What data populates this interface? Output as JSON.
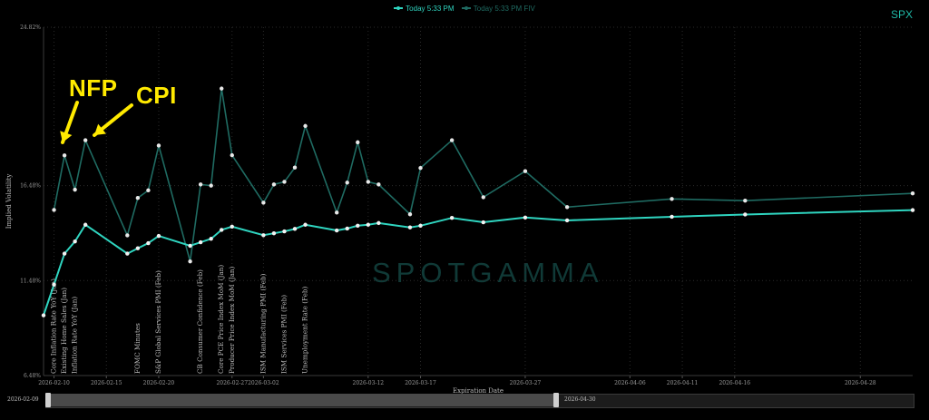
{
  "header": {
    "legend": [
      {
        "label": "Today 5:33 PM",
        "color": "#2fd5c0",
        "faded": false
      },
      {
        "label": "Today 5:33 PM FIV",
        "color": "#1f6b62",
        "faded": true
      }
    ],
    "ticker": "SPX"
  },
  "annotations": {
    "nfp": "NFP",
    "cpi": "CPI"
  },
  "watermark": "SPOTGAMMA",
  "slider": {
    "start_label": "2026-02-09",
    "end_label": "2026-04-30"
  },
  "chart_data": {
    "type": "line",
    "title": "",
    "xlabel": "Expiration Date",
    "ylabel": "Implied Volatility",
    "x_range": [
      "2026-02-09",
      "2026-05-03"
    ],
    "ylim": [
      6.48,
      24.82
    ],
    "y_ticks": [
      "6.48%",
      "11.48%",
      "16.48%",
      "24.82%"
    ],
    "y_tick_values": [
      6.48,
      11.48,
      16.48,
      24.82
    ],
    "x_ticks": [
      "2026-02-10",
      "2026-02-15",
      "2026-02-20",
      "2026-02-27",
      "2026-03-02",
      "2026-03-12",
      "2026-03-17",
      "2026-03-27",
      "2026-04-06",
      "2026-04-11",
      "2026-04-16",
      "2026-04-28"
    ],
    "grid": true,
    "series": [
      {
        "name": "Today 5:33 PM",
        "color": "#2fd5c0",
        "points": [
          [
            "2026-02-09",
            9.65
          ],
          [
            "2026-02-10",
            11.27
          ],
          [
            "2026-02-11",
            12.9
          ],
          [
            "2026-02-12",
            13.54
          ],
          [
            "2026-02-13",
            14.42
          ],
          [
            "2026-02-17",
            12.9
          ],
          [
            "2026-02-18",
            13.18
          ],
          [
            "2026-02-19",
            13.45
          ],
          [
            "2026-02-20",
            13.83
          ],
          [
            "2026-02-23",
            13.31
          ],
          [
            "2026-02-24",
            13.5
          ],
          [
            "2026-02-25",
            13.68
          ],
          [
            "2026-02-26",
            14.15
          ],
          [
            "2026-02-27",
            14.32
          ],
          [
            "2026-03-02",
            13.87
          ],
          [
            "2026-03-03",
            13.97
          ],
          [
            "2026-03-04",
            14.07
          ],
          [
            "2026-03-05",
            14.2
          ],
          [
            "2026-03-06",
            14.42
          ],
          [
            "2026-03-09",
            14.12
          ],
          [
            "2026-03-10",
            14.22
          ],
          [
            "2026-03-11",
            14.37
          ],
          [
            "2026-03-12",
            14.42
          ],
          [
            "2026-03-13",
            14.51
          ],
          [
            "2026-03-16",
            14.28
          ],
          [
            "2026-03-17",
            14.37
          ],
          [
            "2026-03-20",
            14.78
          ],
          [
            "2026-03-23",
            14.55
          ],
          [
            "2026-03-27",
            14.8
          ],
          [
            "2026-03-31",
            14.65
          ],
          [
            "2026-04-10",
            14.84
          ],
          [
            "2026-04-17",
            14.96
          ],
          [
            "2026-05-03",
            15.19
          ]
        ]
      },
      {
        "name": "Today 5:33 PM FIV",
        "color": "#1f6b62",
        "points": [
          [
            "2026-02-10",
            15.2
          ],
          [
            "2026-02-11",
            18.07
          ],
          [
            "2026-02-12",
            16.27
          ],
          [
            "2026-02-13",
            18.87
          ],
          [
            "2026-02-17",
            13.86
          ],
          [
            "2026-02-18",
            15.83
          ],
          [
            "2026-02-19",
            16.23
          ],
          [
            "2026-02-20",
            18.59
          ],
          [
            "2026-02-23",
            12.49
          ],
          [
            "2026-02-24",
            16.54
          ],
          [
            "2026-02-25",
            16.48
          ],
          [
            "2026-02-26",
            21.59
          ],
          [
            "2026-02-27",
            18.08
          ],
          [
            "2026-03-02",
            15.58
          ],
          [
            "2026-03-03",
            16.54
          ],
          [
            "2026-03-04",
            16.68
          ],
          [
            "2026-03-05",
            17.43
          ],
          [
            "2026-03-06",
            19.62
          ],
          [
            "2026-03-09",
            15.06
          ],
          [
            "2026-03-10",
            16.64
          ],
          [
            "2026-03-11",
            18.76
          ],
          [
            "2026-03-12",
            16.68
          ],
          [
            "2026-03-13",
            16.54
          ],
          [
            "2026-03-16",
            14.97
          ],
          [
            "2026-03-17",
            17.41
          ],
          [
            "2026-03-20",
            18.87
          ],
          [
            "2026-03-23",
            15.87
          ],
          [
            "2026-03-27",
            17.24
          ],
          [
            "2026-03-31",
            15.35
          ],
          [
            "2026-04-10",
            15.78
          ],
          [
            "2026-04-17",
            15.69
          ],
          [
            "2026-05-03",
            16.07
          ]
        ]
      }
    ],
    "events": [
      {
        "date": "2026-02-10",
        "label": "Core Inflation Rate YoY (Jan)"
      },
      {
        "date": "2026-02-11",
        "label": "Existing Home Sales (Jan)"
      },
      {
        "date": "2026-02-12",
        "label": "Inflation Rate YoY (Jan)"
      },
      {
        "date": "2026-02-18",
        "label": "FOMC Minutes"
      },
      {
        "date": "2026-02-20",
        "label": "S&P Global Services PMI (Feb)"
      },
      {
        "date": "2026-02-24",
        "label": "CB Consumer Confidence (Feb)"
      },
      {
        "date": "2026-02-26",
        "label": "Core PCE Price Index MoM (Jan)"
      },
      {
        "date": "2026-02-27",
        "label": "Producer Price Index MoM (Jan)"
      },
      {
        "date": "2026-03-02",
        "label": "ISM Manufacturing PMI (Feb)"
      },
      {
        "date": "2026-03-04",
        "label": "ISM Services PMI (Feb)"
      },
      {
        "date": "2026-03-06",
        "label": "Unemployment Rate (Feb)"
      }
    ]
  }
}
